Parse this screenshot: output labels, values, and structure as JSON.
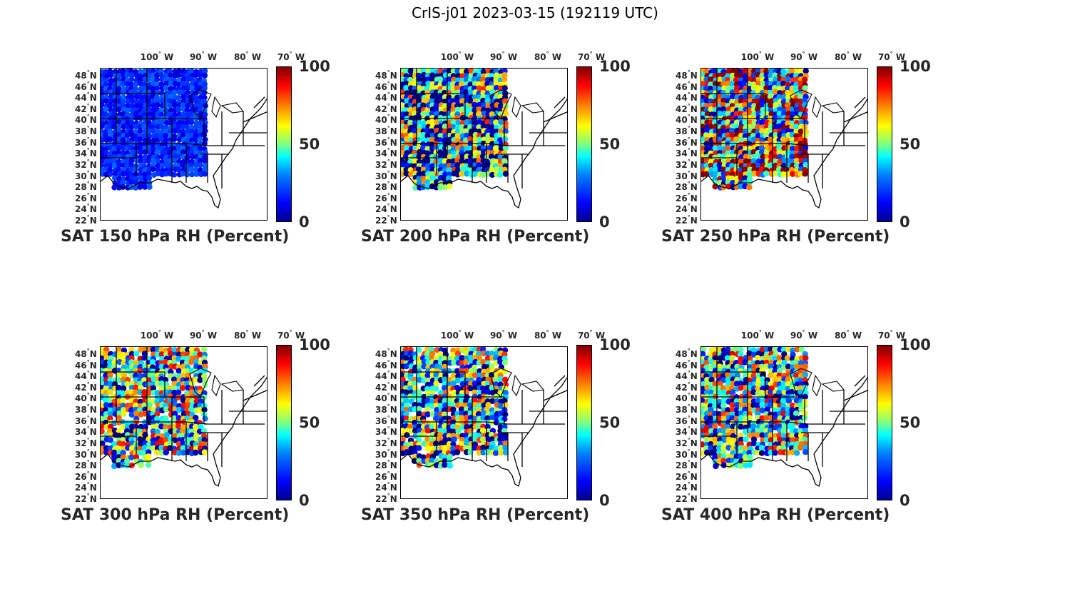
{
  "figure": {
    "title": "CrIS-j01 2023-03-15 (192119 UTC)"
  },
  "axes": {
    "lon_ticks": [
      "100",
      "90",
      "80",
      "70"
    ],
    "lon_suffix": "W",
    "lat_ticks": [
      "48",
      "46",
      "44",
      "42",
      "40",
      "38",
      "36",
      "34",
      "32",
      "30",
      "28",
      "26",
      "24",
      "22"
    ],
    "lat_suffix": "N",
    "degree_symbol": "°"
  },
  "colorbar": {
    "ticks": [
      "100",
      "50",
      "0"
    ],
    "min": 0,
    "max": 100,
    "colormap": "jet"
  },
  "panels": [
    {
      "caption": "SAT 150 hPa RH (Percent)",
      "pressure_hPa": 150,
      "dominant_value": 8
    },
    {
      "caption": "SAT 200 hPa RH (Percent)",
      "pressure_hPa": 200,
      "dominant_value": 30
    },
    {
      "caption": "SAT 250 hPa RH (Percent)",
      "pressure_hPa": 250,
      "dominant_value": 55
    },
    {
      "caption": "SAT 300 hPa RH (Percent)",
      "pressure_hPa": 300,
      "dominant_value": 50
    },
    {
      "caption": "SAT 350 hPa RH (Percent)",
      "pressure_hPa": 350,
      "dominant_value": 45
    },
    {
      "caption": "SAT 400 hPa RH (Percent)",
      "pressure_hPa": 400,
      "dominant_value": 50
    }
  ]
}
